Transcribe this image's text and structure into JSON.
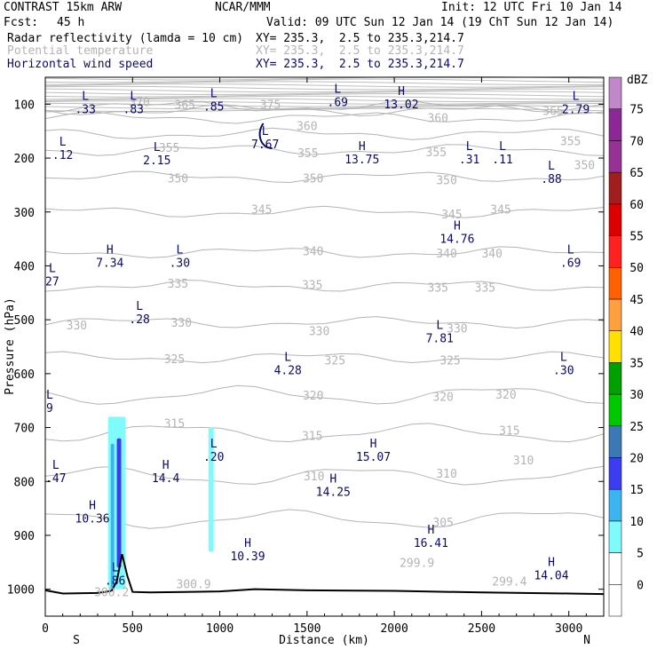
{
  "header": {
    "model": "CONTRAST 15km ARW",
    "source": "NCAR/MMM",
    "init": "Init: 12 UTC Fri 10 Jan 14",
    "fcst_label": "Fcst:",
    "fcst_value": "45 h",
    "valid": "Valid: 09 UTC Sun 12 Jan 14 (19 ChT Sun 12 Jan 14)",
    "fields": [
      {
        "name": "Radar reflectivity (lamda = 10 cm)",
        "xy": "XY= 235.3,  2.5 to 235.3,214.7",
        "color": "#000000"
      },
      {
        "name": "Potential temperature",
        "xy": "XY= 235.3,  2.5 to 235.3,214.7",
        "color": "#b4b4b4"
      },
      {
        "name": "Horizontal wind speed",
        "xy": "XY= 235.3,  2.5 to 235.3,214.7",
        "color": "#0a0a6e"
      }
    ]
  },
  "chart_data": {
    "type": "cross-section",
    "xlabel": "Distance (km)",
    "ylabel": "Pressure (hPa)",
    "xlim": [
      0,
      3200
    ],
    "ylim": [
      1050,
      50
    ],
    "x_ticks": [
      0,
      500,
      1000,
      1500,
      2000,
      2500,
      3000
    ],
    "y_ticks": [
      100,
      200,
      300,
      400,
      500,
      600,
      700,
      800,
      900,
      1000
    ],
    "left_end": "S",
    "right_end": "N",
    "colorbar": {
      "unit": "dBZ",
      "levels": [
        0,
        5,
        10,
        15,
        20,
        25,
        30,
        35,
        40,
        45,
        50,
        55,
        60,
        65,
        70,
        75
      ],
      "colors": [
        "#ffffff",
        "#ffffff",
        "#7ffbfb",
        "#3cb4f0",
        "#3c3cf0",
        "#3c78b4",
        "#00c800",
        "#00a000",
        "#ffe000",
        "#ffa040",
        "#ff6000",
        "#ff2020",
        "#dc0000",
        "#a01e1e",
        "#963296",
        "#8c2896",
        "#c088c8"
      ]
    },
    "theta_contours": [
      {
        "label": "375",
        "p": 111
      },
      {
        "label": "370",
        "p": 104
      },
      {
        "label": "365",
        "p": 125
      },
      {
        "label": "360",
        "p": 155
      },
      {
        "label": "355",
        "p": 185
      },
      {
        "label": "350",
        "p": 235
      },
      {
        "label": "345",
        "p": 300
      },
      {
        "label": "340",
        "p": 375
      },
      {
        "label": "335",
        "p": 437
      },
      {
        "label": "330",
        "p": 505
      },
      {
        "label": "325",
        "p": 570
      },
      {
        "label": "320",
        "p": 640
      },
      {
        "label": "315",
        "p": 710
      },
      {
        "label": "310",
        "p": 790
      },
      {
        "label": "305",
        "p": 870
      }
    ],
    "theta_labels": [
      {
        "text": "375",
        "x": 1290,
        "p": 100
      },
      {
        "text": "370",
        "x": 540,
        "p": 95
      },
      {
        "text": "365",
        "x": 800,
        "p": 100
      },
      {
        "text": "365",
        "x": 2910,
        "p": 112
      },
      {
        "text": "360",
        "x": 1500,
        "p": 140
      },
      {
        "text": "360",
        "x": 2250,
        "p": 125
      },
      {
        "text": "355",
        "x": 710,
        "p": 180
      },
      {
        "text": "355",
        "x": 1505,
        "p": 190
      },
      {
        "text": "355",
        "x": 2240,
        "p": 188
      },
      {
        "text": "355",
        "x": 3010,
        "p": 168
      },
      {
        "text": "350",
        "x": 760,
        "p": 237
      },
      {
        "text": "350",
        "x": 1535,
        "p": 237
      },
      {
        "text": "350",
        "x": 2300,
        "p": 240
      },
      {
        "text": "350",
        "x": 3090,
        "p": 212
      },
      {
        "text": "345",
        "x": 1240,
        "p": 295
      },
      {
        "text": "345",
        "x": 2330,
        "p": 304
      },
      {
        "text": "345",
        "x": 2610,
        "p": 295
      },
      {
        "text": "340",
        "x": 1535,
        "p": 372
      },
      {
        "text": "340",
        "x": 2300,
        "p": 376
      },
      {
        "text": "340",
        "x": 2560,
        "p": 376
      },
      {
        "text": "335",
        "x": 760,
        "p": 432
      },
      {
        "text": "335",
        "x": 1530,
        "p": 435
      },
      {
        "text": "335",
        "x": 2250,
        "p": 440
      },
      {
        "text": "335",
        "x": 2520,
        "p": 440
      },
      {
        "text": "330",
        "x": 180,
        "p": 510
      },
      {
        "text": "330",
        "x": 780,
        "p": 505
      },
      {
        "text": "330",
        "x": 1570,
        "p": 520
      },
      {
        "text": "330",
        "x": 2360,
        "p": 515
      },
      {
        "text": "325",
        "x": 740,
        "p": 572
      },
      {
        "text": "325",
        "x": 1660,
        "p": 575
      },
      {
        "text": "325",
        "x": 2320,
        "p": 575
      },
      {
        "text": "320",
        "x": 1535,
        "p": 640
      },
      {
        "text": "320",
        "x": 2280,
        "p": 642
      },
      {
        "text": "320",
        "x": 2640,
        "p": 638
      },
      {
        "text": "315",
        "x": 740,
        "p": 692
      },
      {
        "text": "315",
        "x": 1530,
        "p": 715
      },
      {
        "text": "315",
        "x": 2660,
        "p": 705
      },
      {
        "text": "310",
        "x": 1540,
        "p": 790
      },
      {
        "text": "310",
        "x": 2300,
        "p": 785
      },
      {
        "text": "310",
        "x": 2740,
        "p": 760
      },
      {
        "text": "305",
        "x": 2280,
        "p": 875
      },
      {
        "text": "299.9",
        "x": 2130,
        "p": 950
      },
      {
        "text": "299.4",
        "x": 2660,
        "p": 985
      },
      {
        "text": "300.9",
        "x": 850,
        "p": 990
      },
      {
        "text": "300.2",
        "x": 380,
        "p": 1005
      }
    ],
    "wind_extrema": [
      {
        "type": "L",
        "value": ".33",
        "x": 230,
        "p": 95
      },
      {
        "type": "L",
        "value": ".83",
        "x": 505,
        "p": 95
      },
      {
        "type": "L",
        "value": ".85",
        "x": 965,
        "p": 90
      },
      {
        "type": "L",
        "value": ".69",
        "x": 1675,
        "p": 82
      },
      {
        "type": "H",
        "value": "13.02",
        "x": 2040,
        "p": 86
      },
      {
        "type": "L",
        "value": "2.79",
        "x": 3040,
        "p": 95
      },
      {
        "type": "L",
        "value": ".12",
        "x": 100,
        "p": 180
      },
      {
        "type": "L",
        "value": "2.15",
        "x": 640,
        "p": 190
      },
      {
        "type": "L",
        "value": "7.67",
        "x": 1260,
        "p": 160
      },
      {
        "type": "H",
        "value": "13.75",
        "x": 1815,
        "p": 188
      },
      {
        "type": "L",
        "value": ".31",
        "x": 2430,
        "p": 188
      },
      {
        "type": "L",
        "value": ".11",
        "x": 2620,
        "p": 188
      },
      {
        "type": "L",
        "value": ".88",
        "x": 2900,
        "p": 225
      },
      {
        "type": "H",
        "value": "14.76",
        "x": 2360,
        "p": 336
      },
      {
        "type": "H",
        "value": "7.34",
        "x": 370,
        "p": 380
      },
      {
        "type": "L",
        "value": ".30",
        "x": 770,
        "p": 380
      },
      {
        "type": "L",
        "value": "27",
        "x": 40,
        "p": 415
      },
      {
        "type": "L",
        "value": ".69",
        "x": 3010,
        "p": 380
      },
      {
        "type": "L",
        "value": ".28",
        "x": 540,
        "p": 485
      },
      {
        "type": "L",
        "value": "7.81",
        "x": 2260,
        "p": 520
      },
      {
        "type": "L",
        "value": "4.28",
        "x": 1390,
        "p": 580
      },
      {
        "type": "L",
        "value": ".30",
        "x": 2970,
        "p": 580
      },
      {
        "type": "H",
        "value": "15.07",
        "x": 1880,
        "p": 740
      },
      {
        "type": "L",
        "value": ".20",
        "x": 965,
        "p": 740
      },
      {
        "type": "H",
        "value": "14.4",
        "x": 690,
        "p": 780
      },
      {
        "type": "L",
        "value": ".47",
        "x": 60,
        "p": 780
      },
      {
        "type": "H",
        "value": "14.25",
        "x": 1650,
        "p": 805
      },
      {
        "type": "H",
        "value": "10.36",
        "x": 270,
        "p": 855
      },
      {
        "type": "H",
        "value": "16.41",
        "x": 2210,
        "p": 900
      },
      {
        "type": "H",
        "value": "10.39",
        "x": 1160,
        "p": 925
      },
      {
        "type": "H",
        "value": "14.04",
        "x": 2900,
        "p": 960
      },
      {
        "type": "L",
        "value": ".86",
        "x": 400,
        "p": 970
      },
      {
        "type": "L",
        "value": "9",
        "x": 25,
        "p": 650
      }
    ],
    "reflectivity": [
      {
        "x0": 360,
        "x1": 460,
        "p_top": 680,
        "p_bot": 1000,
        "dbz": 7
      },
      {
        "x0": 375,
        "x1": 395,
        "p_top": 730,
        "p_bot": 1000,
        "dbz": 12
      },
      {
        "x0": 410,
        "x1": 435,
        "p_top": 720,
        "p_bot": 960,
        "dbz": 16
      },
      {
        "x0": 935,
        "x1": 965,
        "p_top": 700,
        "p_bot": 930,
        "dbz": 8
      }
    ],
    "terrain": [
      [
        0,
        1002
      ],
      [
        100,
        1008
      ],
      [
        300,
        1007
      ],
      [
        380,
        1003
      ],
      [
        410,
        985
      ],
      [
        440,
        935
      ],
      [
        470,
        975
      ],
      [
        500,
        1005
      ],
      [
        600,
        1006
      ],
      [
        800,
        1005
      ],
      [
        1000,
        1004
      ],
      [
        1200,
        1000
      ],
      [
        1500,
        1002
      ],
      [
        2000,
        1003
      ],
      [
        2500,
        1006
      ],
      [
        3000,
        1008
      ],
      [
        3200,
        1009
      ]
    ]
  }
}
